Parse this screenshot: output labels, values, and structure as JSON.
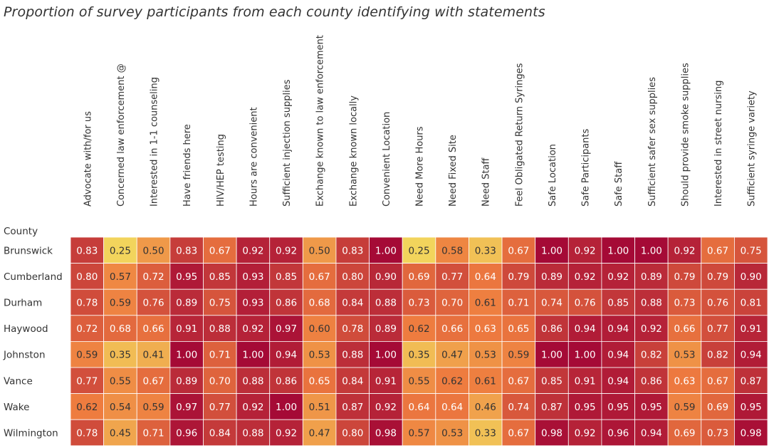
{
  "chart_data": {
    "type": "heatmap",
    "title": "Proportion of survey participants from each county identifying with statements",
    "row_header": "County",
    "columns": [
      "Advocate with/for us",
      "Concerned law enforcement @",
      "Interested in 1-1 counseling",
      "Have friends here",
      "HIV/HEP testing",
      "Hours are convenient",
      "Sufficient injection supplies",
      "Exchange known to law enforcement",
      "Exchange known locally",
      "Convenient Location",
      "Need More Hours",
      "Need Fixed Site",
      "Need Staff",
      "Feel Obligated Return Syringes",
      "Safe Location",
      "Safe Participants",
      "Safe Staff",
      "Sufficient safer sex supplies",
      "Should provide smoke supplies",
      "Interested in street nursing",
      "Sufficient syringe variety"
    ],
    "rows": [
      "Brunswick",
      "Cumberland",
      "Durham",
      "Haywood",
      "Johnston",
      "Vance",
      "Wake",
      "Wilmington"
    ],
    "values": [
      [
        0.83,
        0.25,
        0.5,
        0.83,
        0.67,
        0.92,
        0.92,
        0.5,
        0.83,
        1.0,
        0.25,
        0.58,
        0.33,
        0.67,
        1.0,
        0.92,
        1.0,
        1.0,
        0.92,
        0.67,
        0.75
      ],
      [
        0.8,
        0.57,
        0.72,
        0.95,
        0.85,
        0.93,
        0.85,
        0.67,
        0.8,
        0.9,
        0.69,
        0.77,
        0.64,
        0.79,
        0.89,
        0.92,
        0.92,
        0.89,
        0.79,
        0.79,
        0.9
      ],
      [
        0.78,
        0.59,
        0.76,
        0.89,
        0.75,
        0.93,
        0.86,
        0.68,
        0.84,
        0.88,
        0.73,
        0.7,
        0.61,
        0.71,
        0.74,
        0.76,
        0.85,
        0.88,
        0.73,
        0.76,
        0.81
      ],
      [
        0.72,
        0.68,
        0.66,
        0.91,
        0.88,
        0.92,
        0.97,
        0.6,
        0.78,
        0.89,
        0.62,
        0.66,
        0.63,
        0.65,
        0.86,
        0.94,
        0.94,
        0.92,
        0.66,
        0.77,
        0.91
      ],
      [
        0.59,
        0.35,
        0.41,
        1.0,
        0.71,
        1.0,
        0.94,
        0.53,
        0.88,
        1.0,
        0.35,
        0.47,
        0.53,
        0.59,
        1.0,
        1.0,
        0.94,
        0.82,
        0.53,
        0.82,
        0.94
      ],
      [
        0.77,
        0.55,
        0.67,
        0.89,
        0.7,
        0.88,
        0.86,
        0.65,
        0.84,
        0.91,
        0.55,
        0.62,
        0.61,
        0.67,
        0.85,
        0.91,
        0.94,
        0.86,
        0.63,
        0.67,
        0.87
      ],
      [
        0.62,
        0.54,
        0.59,
        0.97,
        0.77,
        0.92,
        1.0,
        0.51,
        0.87,
        0.92,
        0.64,
        0.64,
        0.46,
        0.74,
        0.87,
        0.95,
        0.95,
        0.95,
        0.59,
        0.69,
        0.95
      ],
      [
        0.78,
        0.45,
        0.71,
        0.96,
        0.84,
        0.88,
        0.92,
        0.47,
        0.8,
        0.98,
        0.57,
        0.53,
        0.33,
        0.67,
        0.98,
        0.92,
        0.96,
        0.94,
        0.69,
        0.73,
        0.98
      ]
    ],
    "color_scale": {
      "low_color": "#f2d45c",
      "mid_color": "#ee7b3f",
      "high_color": "#a50a36",
      "value_range": [
        0.25,
        1.0
      ]
    }
  }
}
